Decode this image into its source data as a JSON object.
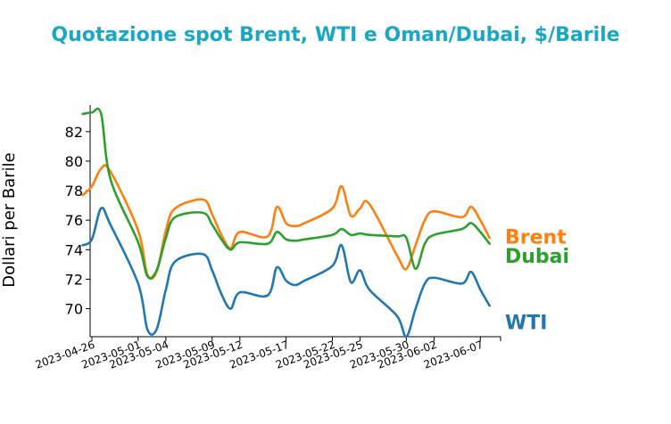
{
  "chart_data": {
    "type": "line",
    "title": "Quotazione spot Brent, WTI e Oman/Dubai, $/Barile",
    "title_color": "#1aa7c6",
    "ylabel": "Dollari per Barile",
    "xlabel": "",
    "ylim": [
      68.1,
      83.8
    ],
    "yticks": [
      70,
      72,
      74,
      76,
      78,
      80,
      82
    ],
    "xlim": [
      "2023-04-26",
      "2023-06-09"
    ],
    "xtick_labels": [
      "2023-04-26",
      "2023-05-01",
      "2023-05-04",
      "2023-05-09",
      "2023-05-12",
      "2023-05-17",
      "2023-05-22",
      "2023-05-25",
      "2023-05-30",
      "2023-06-02",
      "2023-06-07"
    ],
    "grid": false,
    "legend": "inline labels at right end of lines",
    "series": [
      {
        "name": "Brent",
        "color": "#ff7f0e",
        "x": [
          "2023-04-25",
          "2023-04-26",
          "2023-04-27",
          "2023-04-28",
          "2023-05-01",
          "2023-05-02",
          "2023-05-03",
          "2023-05-04",
          "2023-05-05",
          "2023-05-08",
          "2023-05-09",
          "2023-05-10",
          "2023-05-11",
          "2023-05-12",
          "2023-05-15",
          "2023-05-16",
          "2023-05-17",
          "2023-05-18",
          "2023-05-19",
          "2023-05-22",
          "2023-05-23",
          "2023-05-24",
          "2023-05-25",
          "2023-05-26",
          "2023-05-29",
          "2023-05-30",
          "2023-05-31",
          "2023-06-01",
          "2023-06-02",
          "2023-06-05",
          "2023-06-06",
          "2023-06-07",
          "2023-06-08"
        ],
        "values": [
          77.7,
          78.3,
          79.5,
          79.3,
          75.3,
          72.3,
          72.5,
          75.3,
          76.8,
          77.4,
          76.4,
          75.0,
          74.1,
          75.2,
          74.9,
          76.9,
          75.8,
          75.6,
          75.8,
          76.8,
          78.3,
          76.3,
          76.8,
          77.1,
          73.6,
          72.7,
          74.3,
          76.0,
          76.6,
          76.2,
          76.9,
          76.0,
          74.8
        ]
      },
      {
        "name": "Dubai",
        "color": "#2ca02c",
        "x": [
          "2023-04-25",
          "2023-04-26",
          "2023-04-27",
          "2023-04-28",
          "2023-05-01",
          "2023-05-02",
          "2023-05-03",
          "2023-05-04",
          "2023-05-05",
          "2023-05-08",
          "2023-05-09",
          "2023-05-10",
          "2023-05-11",
          "2023-05-12",
          "2023-05-15",
          "2023-05-16",
          "2023-05-17",
          "2023-05-18",
          "2023-05-19",
          "2023-05-22",
          "2023-05-23",
          "2023-05-24",
          "2023-05-25",
          "2023-05-26",
          "2023-05-29",
          "2023-05-30",
          "2023-05-31",
          "2023-06-01",
          "2023-06-02",
          "2023-06-05",
          "2023-06-06",
          "2023-06-07",
          "2023-06-08"
        ],
        "values": [
          83.2,
          83.3,
          83.2,
          78.8,
          74.5,
          72.2,
          72.6,
          74.8,
          76.2,
          76.5,
          75.7,
          74.7,
          74.0,
          74.5,
          74.4,
          75.2,
          74.7,
          74.6,
          74.7,
          75.0,
          75.4,
          75.0,
          75.1,
          75.0,
          74.9,
          74.8,
          72.7,
          74.4,
          75.0,
          75.4,
          75.8,
          75.2,
          74.4
        ]
      },
      {
        "name": "WTI",
        "color": "#1f77b4",
        "x": [
          "2023-04-25",
          "2023-04-26",
          "2023-04-27",
          "2023-04-28",
          "2023-05-01",
          "2023-05-02",
          "2023-05-03",
          "2023-05-04",
          "2023-05-05",
          "2023-05-08",
          "2023-05-09",
          "2023-05-10",
          "2023-05-11",
          "2023-05-12",
          "2023-05-15",
          "2023-05-16",
          "2023-05-17",
          "2023-05-18",
          "2023-05-19",
          "2023-05-22",
          "2023-05-23",
          "2023-05-24",
          "2023-05-25",
          "2023-05-26",
          "2023-05-29",
          "2023-05-30",
          "2023-05-31",
          "2023-06-01",
          "2023-06-02",
          "2023-06-05",
          "2023-06-06",
          "2023-06-07",
          "2023-06-08"
        ],
        "values": [
          74.3,
          74.7,
          76.8,
          75.7,
          71.7,
          68.6,
          68.6,
          71.3,
          73.2,
          73.7,
          72.6,
          71.0,
          70.0,
          71.1,
          70.9,
          72.8,
          71.9,
          71.6,
          71.9,
          72.9,
          74.3,
          71.8,
          72.6,
          71.3,
          69.5,
          68.1,
          70.0,
          71.7,
          72.1,
          71.7,
          72.5,
          71.3,
          70.2
        ]
      }
    ]
  }
}
